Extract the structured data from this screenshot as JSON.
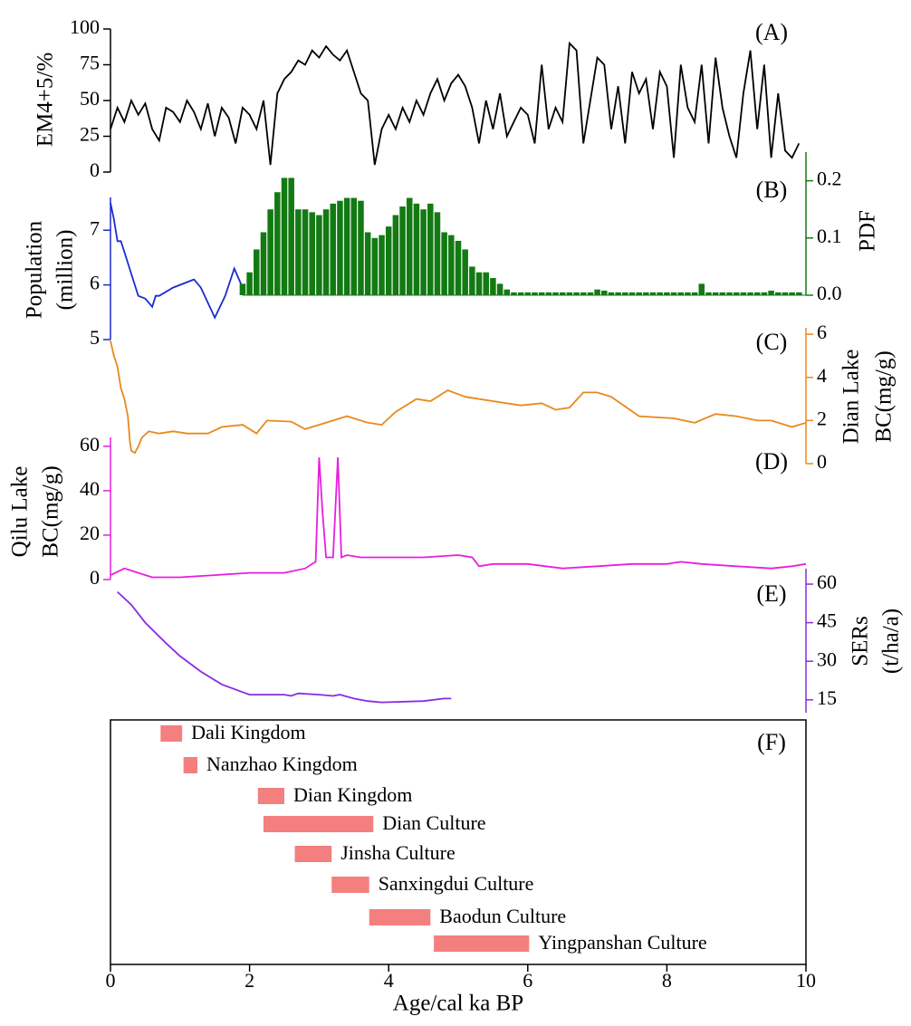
{
  "chart_data": [
    {
      "type": "line",
      "label": "(A)",
      "ylabel": [
        "EM4+5/%"
      ],
      "y_side": "left",
      "xlim": [
        0,
        10
      ],
      "ylim": [
        0,
        100
      ],
      "yticks": [
        0,
        25,
        50,
        75,
        100
      ],
      "series": [
        {
          "color": "#000000",
          "x": [
            0,
            0.1,
            0.2,
            0.3,
            0.4,
            0.5,
            0.6,
            0.7,
            0.8,
            0.9,
            1,
            1.1,
            1.2,
            1.3,
            1.4,
            1.5,
            1.6,
            1.7,
            1.8,
            1.9,
            2,
            2.1,
            2.2,
            2.3,
            2.4,
            2.5,
            2.6,
            2.7,
            2.8,
            2.9,
            3,
            3.1,
            3.2,
            3.3,
            3.4,
            3.5,
            3.6,
            3.7,
            3.8,
            3.9,
            4,
            4.1,
            4.2,
            4.3,
            4.4,
            4.5,
            4.6,
            4.7,
            4.8,
            4.9,
            5,
            5.1,
            5.2,
            5.3,
            5.4,
            5.5,
            5.6,
            5.7,
            5.8,
            5.9,
            6,
            6.1,
            6.2,
            6.3,
            6.4,
            6.5,
            6.6,
            6.7,
            6.8,
            6.9,
            7,
            7.1,
            7.2,
            7.3,
            7.4,
            7.5,
            7.6,
            7.7,
            7.8,
            7.9,
            8,
            8.1,
            8.2,
            8.3,
            8.4,
            8.5,
            8.6,
            8.7,
            8.8,
            8.9,
            9,
            9.1,
            9.2,
            9.3,
            9.4,
            9.5,
            9.6,
            9.7,
            9.8,
            9.9
          ],
          "values": [
            30,
            45,
            35,
            50,
            40,
            48,
            30,
            22,
            45,
            42,
            35,
            50,
            42,
            30,
            48,
            25,
            45,
            38,
            20,
            45,
            40,
            30,
            50,
            5,
            55,
            65,
            70,
            78,
            75,
            85,
            80,
            88,
            82,
            78,
            85,
            70,
            55,
            50,
            5,
            30,
            40,
            30,
            45,
            35,
            50,
            40,
            55,
            65,
            50,
            62,
            68,
            60,
            45,
            20,
            50,
            30,
            55,
            25,
            35,
            45,
            40,
            20,
            75,
            30,
            45,
            35,
            90,
            85,
            20,
            50,
            80,
            75,
            30,
            60,
            20,
            70,
            55,
            65,
            30,
            70,
            60,
            10,
            75,
            45,
            35,
            75,
            20,
            80,
            45,
            25,
            10,
            55,
            85,
            30,
            75,
            10,
            55,
            15,
            10,
            20
          ]
        }
      ]
    },
    {
      "type": "combo",
      "label": "(B)",
      "ylabel": [
        "Population",
        "(million)"
      ],
      "y_side": "left",
      "xlim": [
        0,
        10
      ],
      "ylim": [
        5,
        7.6
      ],
      "yticks": [
        5,
        6,
        7
      ],
      "y2label": [
        "PDF"
      ],
      "y2lim": [
        0,
        0.25
      ],
      "y2ticks": [
        {
          "value": 0,
          "label": "0.0"
        },
        0.1,
        0.2
      ],
      "series": [
        {
          "type": "line",
          "color": "#1a2ccf",
          "x": [
            0,
            0.05,
            0.1,
            0.15,
            0.2,
            0.3,
            0.4,
            0.5,
            0.6,
            0.65,
            0.7,
            0.9,
            1.2,
            1.3,
            1.5,
            1.65,
            1.78,
            1.9
          ],
          "values": [
            7.5,
            7.2,
            6.8,
            6.8,
            6.6,
            6.2,
            5.8,
            5.75,
            5.6,
            5.8,
            5.8,
            5.95,
            6.1,
            5.95,
            5.4,
            5.8,
            6.3,
            5.95
          ]
        },
        {
          "type": "bar",
          "axis": "y2",
          "color": "#137a13",
          "x": [
            1.9,
            2,
            2.1,
            2.2,
            2.3,
            2.4,
            2.5,
            2.6,
            2.7,
            2.8,
            2.9,
            3,
            3.1,
            3.2,
            3.3,
            3.4,
            3.5,
            3.6,
            3.7,
            3.8,
            3.9,
            4,
            4.1,
            4.2,
            4.3,
            4.4,
            4.5,
            4.6,
            4.7,
            4.8,
            4.9,
            5,
            5.1,
            5.2,
            5.3,
            5.4,
            5.5,
            5.6,
            5.7,
            5.8,
            5.9,
            6,
            6.1,
            6.2,
            6.3,
            6.4,
            6.5,
            6.6,
            6.7,
            6.8,
            6.9,
            7,
            7.1,
            7.2,
            7.3,
            7.4,
            7.5,
            7.6,
            7.7,
            7.8,
            7.9,
            8,
            8.1,
            8.2,
            8.3,
            8.4,
            8.5,
            8.6,
            8.7,
            8.8,
            8.9,
            9,
            9.1,
            9.2,
            9.3,
            9.4,
            9.5,
            9.6,
            9.7,
            9.8,
            9.9
          ],
          "values": [
            0.02,
            0.04,
            0.08,
            0.11,
            0.15,
            0.18,
            0.205,
            0.205,
            0.15,
            0.15,
            0.145,
            0.14,
            0.15,
            0.16,
            0.165,
            0.17,
            0.17,
            0.165,
            0.11,
            0.1,
            0.105,
            0.12,
            0.14,
            0.155,
            0.17,
            0.16,
            0.15,
            0.16,
            0.145,
            0.11,
            0.105,
            0.095,
            0.08,
            0.05,
            0.04,
            0.04,
            0.03,
            0.02,
            0.01,
            0.005,
            0.005,
            0.005,
            0.005,
            0.005,
            0.005,
            0.005,
            0.005,
            0.005,
            0.005,
            0.005,
            0.005,
            0.01,
            0.008,
            0.005,
            0.005,
            0.005,
            0.005,
            0.005,
            0.005,
            0.005,
            0.005,
            0.005,
            0.005,
            0.005,
            0.005,
            0.005,
            0.02,
            0.005,
            0.005,
            0.005,
            0.005,
            0.005,
            0.005,
            0.005,
            0.005,
            0.005,
            0.008,
            0.005,
            0.005,
            0.005,
            0.005
          ]
        }
      ]
    },
    {
      "type": "line",
      "label": "(C)",
      "ylabel": [
        "Dian Lake",
        "BC(mg/g)"
      ],
      "y_side": "right",
      "xlim": [
        0,
        10
      ],
      "ylim": [
        0,
        6.3
      ],
      "yticks": [
        0,
        2,
        4,
        6
      ],
      "series": [
        {
          "color": "#e8891c",
          "x": [
            0,
            0.05,
            0.1,
            0.15,
            0.2,
            0.25,
            0.28,
            0.3,
            0.35,
            0.4,
            0.45,
            0.55,
            0.7,
            0.9,
            1.1,
            1.4,
            1.6,
            1.9,
            2.1,
            2.25,
            2.6,
            2.8,
            3,
            3.4,
            3.7,
            3.9,
            4.1,
            4.4,
            4.6,
            4.85,
            5.1,
            5.5,
            5.9,
            6.2,
            6.4,
            6.6,
            6.8,
            7,
            7.2,
            7.6,
            8.1,
            8.4,
            8.7,
            9,
            9.3,
            9.5,
            9.8,
            10
          ],
          "values": [
            5.7,
            5,
            4.5,
            3.5,
            3,
            2.2,
            1,
            0.6,
            0.5,
            0.8,
            1.2,
            1.5,
            1.4,
            1.5,
            1.4,
            1.4,
            1.7,
            1.8,
            1.4,
            2,
            1.95,
            1.6,
            1.8,
            2.2,
            1.9,
            1.8,
            2.4,
            3,
            2.9,
            3.4,
            3.1,
            2.9,
            2.7,
            2.8,
            2.5,
            2.6,
            3.3,
            3.3,
            3.1,
            2.2,
            2.1,
            1.9,
            2.3,
            2.2,
            2,
            2,
            1.7,
            1.9
          ]
        }
      ]
    },
    {
      "type": "line",
      "label": "(D)",
      "ylabel": [
        "Qilu Lake",
        "BC(mg/g)"
      ],
      "y_side": "left",
      "xlim": [
        0,
        10
      ],
      "ylim": [
        0,
        64
      ],
      "yticks": [
        0,
        20,
        40,
        60
      ],
      "series": [
        {
          "color": "#e81ee0",
          "x": [
            0,
            0.2,
            0.4,
            0.6,
            1,
            1.5,
            2,
            2.5,
            2.8,
            2.9,
            2.95,
            3,
            3.05,
            3.1,
            3.2,
            3.27,
            3.32,
            3.4,
            3.6,
            4,
            4.5,
            5,
            5.2,
            5.3,
            5.5,
            6,
            6.5,
            7,
            7.5,
            8,
            8.2,
            8.5,
            9,
            9.5,
            9.8,
            10
          ],
          "values": [
            2,
            5,
            3,
            1,
            1,
            2,
            3,
            3,
            5,
            7,
            8,
            55,
            30,
            10,
            10,
            55,
            10,
            11,
            10,
            10,
            10,
            11,
            10,
            6,
            7,
            7,
            5,
            6,
            7,
            7,
            8,
            7,
            6,
            5,
            6,
            7
          ]
        }
      ]
    },
    {
      "type": "line",
      "label": "(E)",
      "ylabel": [
        "SERs",
        "(t/ha/a)"
      ],
      "y_side": "right",
      "xlim": [
        0,
        10
      ],
      "ylim": [
        10,
        66
      ],
      "yticks": [
        15,
        30,
        45,
        60
      ],
      "series": [
        {
          "color": "#8a2be2",
          "x": [
            0.1,
            0.3,
            0.5,
            0.8,
            1,
            1.3,
            1.6,
            1.9,
            2,
            2.5,
            2.6,
            2.7,
            3,
            3.2,
            3.3,
            3.5,
            3.7,
            3.9,
            4.5,
            4.8,
            4.9
          ],
          "values": [
            57,
            52,
            45,
            37,
            32,
            26,
            21,
            18,
            17,
            17,
            16.5,
            17.5,
            17,
            16.5,
            17,
            15.5,
            14.5,
            14,
            14.5,
            15.5,
            15.5
          ]
        }
      ]
    },
    {
      "type": "timeline",
      "label": "(F)",
      "xlabel": "Age/cal ka BP",
      "xlim": [
        0,
        10
      ],
      "xticks": [
        0,
        2,
        4,
        6,
        8,
        10
      ],
      "color": "#f47f7f",
      "tasks": [
        {
          "name": "Dali Kingdom",
          "start": 0.72,
          "end": 1.03
        },
        {
          "name": "Nanzhao Kingdom",
          "start": 1.05,
          "end": 1.25
        },
        {
          "name": "Dian Kingdom",
          "start": 2.12,
          "end": 2.5
        },
        {
          "name": "Dian Culture",
          "start": 2.2,
          "end": 3.78
        },
        {
          "name": "Jinsha Culture",
          "start": 2.65,
          "end": 3.18
        },
        {
          "name": "Sanxingdui Culture",
          "start": 3.18,
          "end": 3.72
        },
        {
          "name": "Baodun Culture",
          "start": 3.72,
          "end": 4.6
        },
        {
          "name": "Yingpanshan Culture",
          "start": 4.65,
          "end": 6.02
        }
      ]
    }
  ]
}
